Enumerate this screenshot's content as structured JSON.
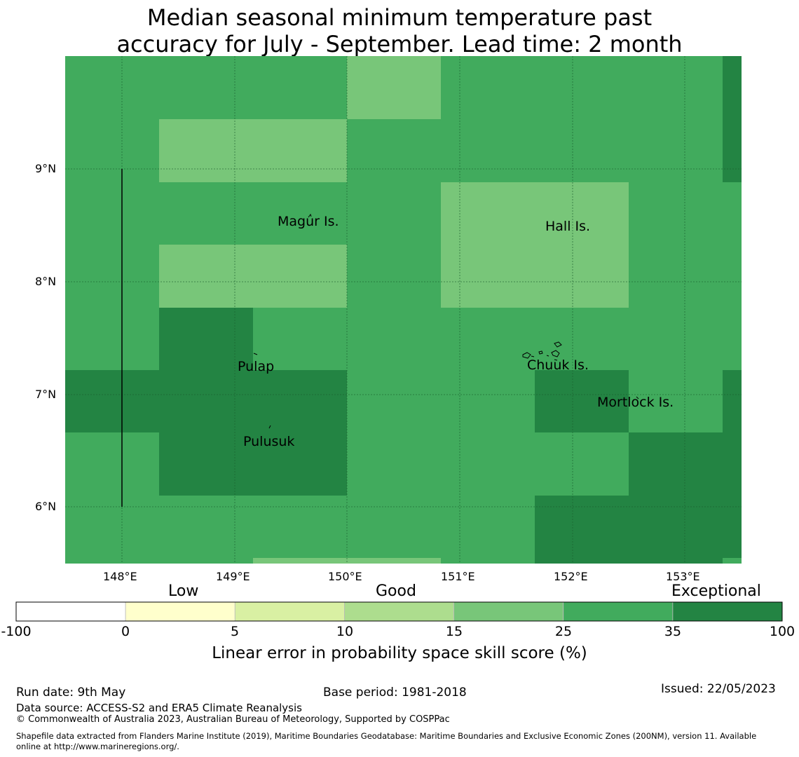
{
  "title_line1": "Median seasonal minimum temperature past",
  "title_line2": "accuracy for July - September. Lead time: 2 month",
  "map": {
    "lat_ticks": [
      "9°N",
      "8°N",
      "7°N",
      "6°N"
    ],
    "lon_ticks": [
      "148°E",
      "149°E",
      "150°E",
      "151°E",
      "152°E",
      "153°E"
    ],
    "place_labels": [
      "Magur Is.",
      "Hall Is.",
      "Pulap",
      "Chuuk Is.",
      "Mortlock Is.",
      "Pulusuk"
    ]
  },
  "colorbar": {
    "categories": [
      "Low",
      "Good",
      "Exceptional"
    ],
    "ticks": [
      "-100",
      "0",
      "5",
      "10",
      "15",
      "25",
      "35",
      "100"
    ],
    "colors": [
      "#ffffff",
      "#ffffcc",
      "#d9f0a3",
      "#addd8e",
      "#78c679",
      "#41ab5d",
      "#238443"
    ],
    "label": "Linear error in probability space skill score (%)"
  },
  "footer": {
    "run_date": "Run date: 9th May",
    "base_period": "Base period: 1981-2018",
    "issued": "Issued: 22/05/2023",
    "data_source": "Data source: ACCESS-S2 and ERA5 Climate Reanalysis",
    "copyright": "© Commonwealth of Australia 2023, Australian Bureau of Meteorology, Supported by COSPPac",
    "shapefile_line1": "Shapefile data extracted from Flanders Marine Institute (2019), Maritime Boundaries Geodatabase: Maritime Boundaries and Exclusive Economic Zones (200NM), version 11. Available",
    "shapefile_line2": "online at http://www.marineregions.org/."
  },
  "colors": {
    "mid_green": "#41ab5d",
    "light_green": "#78c679",
    "dark_green": "#238443"
  }
}
